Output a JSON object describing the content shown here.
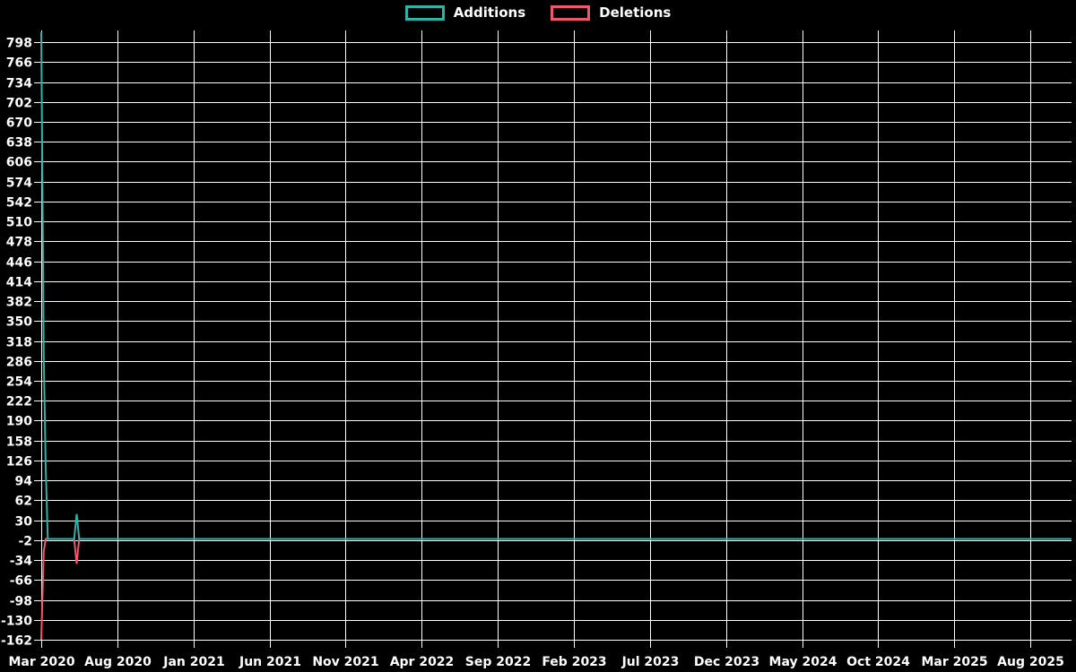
{
  "page": {
    "background_color": "#000000",
    "text_color": "#ffffff",
    "grid_color": "#ffffff"
  },
  "chart_data": {
    "type": "line",
    "title": "",
    "legend_position": "top-center",
    "grid": true,
    "x_tick_labels": [
      "Mar 2020",
      "Aug 2020",
      "Jan 2021",
      "Jun 2021",
      "Nov 2021",
      "Apr 2022",
      "Sep 2022",
      "Feb 2023",
      "Jul 2023",
      "Dec 2023",
      "May 2024",
      "Oct 2024",
      "Mar 2025",
      "Aug 2025"
    ],
    "x_axis": {
      "start_date": "2020-03-01",
      "months_per_tick": 5
    },
    "y_ticks": [
      798,
      766,
      734,
      702,
      670,
      638,
      606,
      574,
      542,
      510,
      478,
      446,
      414,
      382,
      350,
      318,
      286,
      254,
      222,
      190,
      158,
      126,
      94,
      62,
      30,
      -2,
      -34,
      -66,
      -98,
      -130,
      -162
    ],
    "ylim": [
      -162,
      814
    ],
    "series": [
      {
        "name": "Additions",
        "color": "#2fb3a8",
        "points": [
          [
            "2020-03-01",
            814
          ],
          [
            "2020-03-06",
            294
          ],
          [
            "2020-03-10",
            114
          ],
          [
            "2020-03-14",
            0
          ],
          [
            "2020-05-06",
            0
          ],
          [
            "2020-05-11",
            40
          ],
          [
            "2020-05-16",
            0
          ],
          [
            "2025-08-31",
            0
          ]
        ]
      },
      {
        "name": "Deletions",
        "color": "#f0566f",
        "points": [
          [
            "2020-03-01",
            -162
          ],
          [
            "2020-03-06",
            -20
          ],
          [
            "2020-03-10",
            0
          ],
          [
            "2020-05-06",
            0
          ],
          [
            "2020-05-11",
            -40
          ],
          [
            "2020-05-16",
            0
          ],
          [
            "2025-08-31",
            0
          ]
        ]
      }
    ]
  }
}
